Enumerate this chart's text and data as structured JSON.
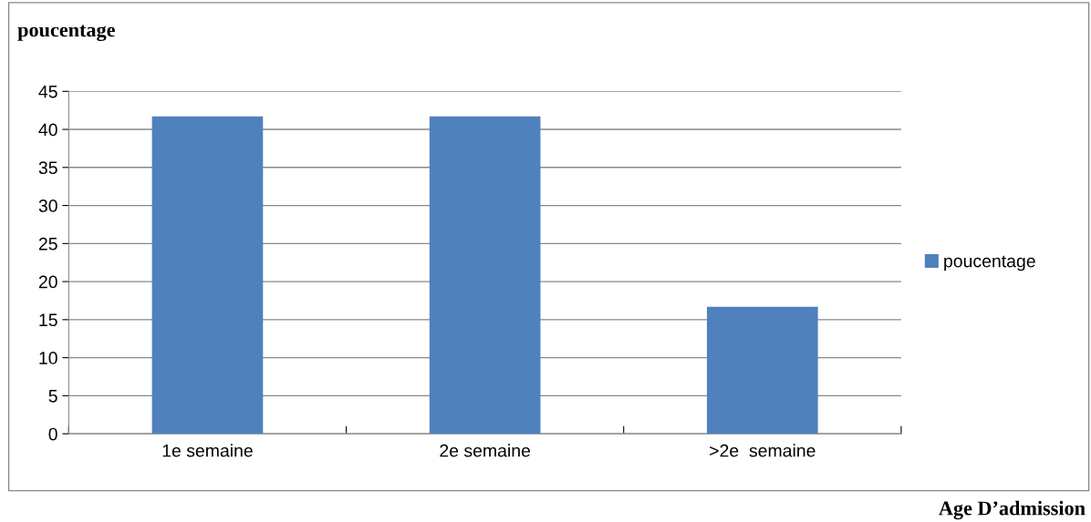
{
  "chart_data": {
    "type": "bar",
    "ylabel": "poucentage",
    "xlabel": "Age D’admission",
    "categories": [
      "1e semaine",
      "2e semaine",
      ">2e  semaine"
    ],
    "series": [
      {
        "name": "poucentage",
        "color": "#4f81bd",
        "values": [
          41.7,
          41.7,
          16.7
        ]
      }
    ],
    "ylim": [
      0,
      45
    ],
    "yticks": [
      0,
      5,
      10,
      15,
      20,
      25,
      30,
      35,
      40,
      45
    ],
    "grid": "y",
    "legend": "right"
  }
}
